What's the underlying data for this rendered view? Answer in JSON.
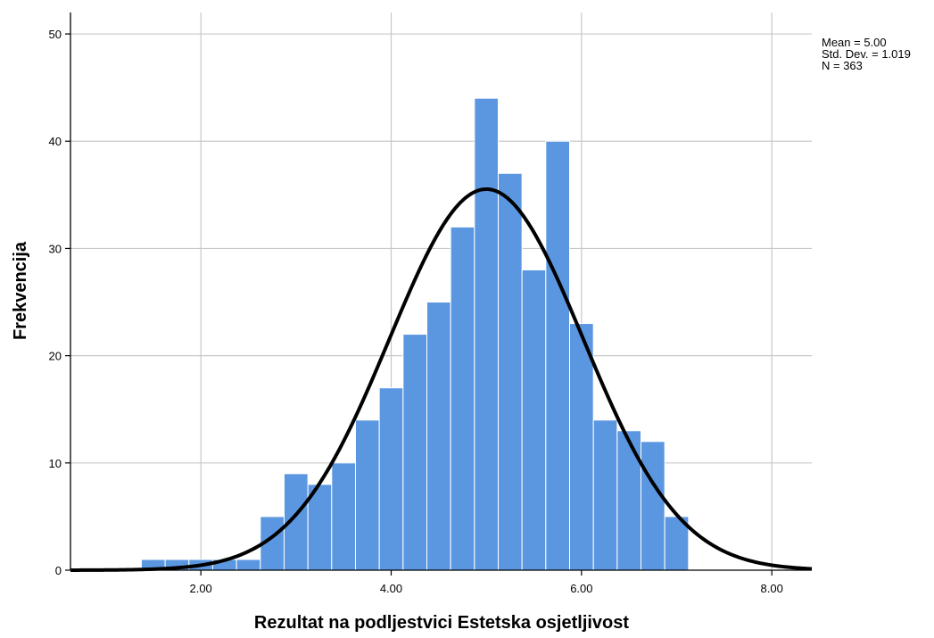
{
  "chart_data": {
    "type": "histogram",
    "xlabel": "Rezultat na podljestvici Estetska osjetljivost",
    "ylabel": "Frekvencija",
    "xlim": [
      0.63,
      8.42
    ],
    "ylim": [
      0,
      52
    ],
    "bin_width": 0.25,
    "bins": [
      {
        "start": 1.375,
        "end": 1.625,
        "count": 1
      },
      {
        "start": 1.625,
        "end": 1.875,
        "count": 1
      },
      {
        "start": 1.875,
        "end": 2.125,
        "count": 1
      },
      {
        "start": 2.125,
        "end": 2.375,
        "count": 1
      },
      {
        "start": 2.375,
        "end": 2.625,
        "count": 1
      },
      {
        "start": 2.625,
        "end": 2.875,
        "count": 5
      },
      {
        "start": 2.875,
        "end": 3.125,
        "count": 9
      },
      {
        "start": 3.125,
        "end": 3.375,
        "count": 8
      },
      {
        "start": 3.375,
        "end": 3.625,
        "count": 10
      },
      {
        "start": 3.625,
        "end": 3.875,
        "count": 14
      },
      {
        "start": 3.875,
        "end": 4.125,
        "count": 17
      },
      {
        "start": 4.125,
        "end": 4.375,
        "count": 22
      },
      {
        "start": 4.375,
        "end": 4.625,
        "count": 25
      },
      {
        "start": 4.625,
        "end": 4.875,
        "count": 32
      },
      {
        "start": 4.875,
        "end": 5.125,
        "count": 44
      },
      {
        "start": 5.125,
        "end": 5.375,
        "count": 37
      },
      {
        "start": 5.375,
        "end": 5.625,
        "count": 28
      },
      {
        "start": 5.625,
        "end": 5.875,
        "count": 40
      },
      {
        "start": 5.875,
        "end": 6.125,
        "count": 23
      },
      {
        "start": 6.125,
        "end": 6.375,
        "count": 14
      },
      {
        "start": 6.375,
        "end": 6.625,
        "count": 13
      },
      {
        "start": 6.625,
        "end": 6.875,
        "count": 12
      },
      {
        "start": 6.875,
        "end": 7.125,
        "count": 5
      }
    ],
    "x_ticks": [
      {
        "value": 2,
        "label": "2.00"
      },
      {
        "value": 4,
        "label": "4.00"
      },
      {
        "value": 6,
        "label": "6.00"
      },
      {
        "value": 8,
        "label": "8.00"
      }
    ],
    "y_ticks": [
      {
        "value": 0,
        "label": "0"
      },
      {
        "value": 10,
        "label": "10"
      },
      {
        "value": 20,
        "label": "20"
      },
      {
        "value": 30,
        "label": "30"
      },
      {
        "value": 40,
        "label": "40"
      },
      {
        "value": 50,
        "label": "50"
      }
    ],
    "normal_curve": {
      "mean": 5.0,
      "sd": 1.019,
      "n": 363
    },
    "stats_text": [
      "Mean = 5.00",
      "Std. Dev. = 1.019",
      "N = 363"
    ],
    "grid": true,
    "colors": {
      "bar_fill": "#5b97e0",
      "bar_stroke": "#ffffff",
      "curve": "#000000",
      "grid": "#c8c8c8",
      "axis": "#000000"
    }
  }
}
